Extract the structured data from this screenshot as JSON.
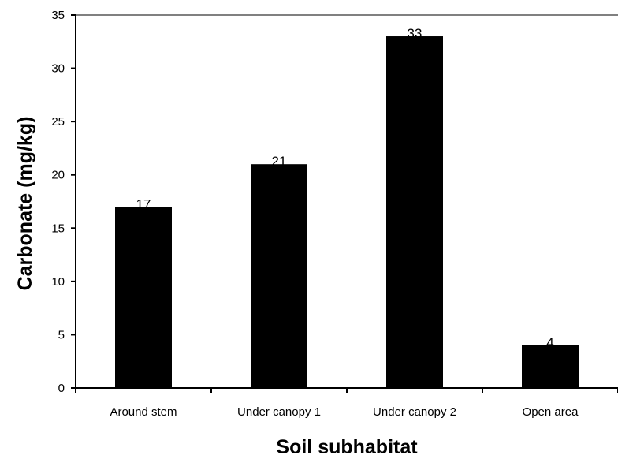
{
  "chart_data": {
    "type": "bar",
    "categories": [
      "Around stem",
      "Under canopy 1",
      "Under canopy 2",
      "Open area"
    ],
    "values": [
      17,
      21,
      33,
      4
    ],
    "data_labels": [
      "17",
      "21",
      "33",
      "4"
    ],
    "title": "",
    "xlabel": "Soil subhabitat",
    "ylabel": "Carbonate  (mg/kg)",
    "ylim": [
      0,
      35
    ],
    "yticks": [
      0,
      5,
      10,
      15,
      20,
      25,
      30,
      35
    ],
    "grid": false,
    "bar_color": "#000000"
  }
}
